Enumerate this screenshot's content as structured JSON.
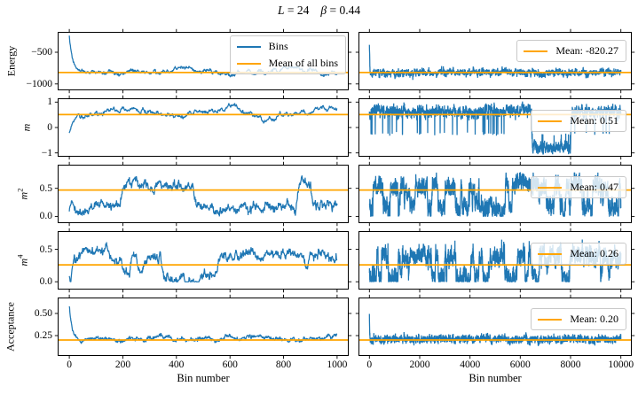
{
  "figure": {
    "title": {
      "var1": "L",
      "eq1": " = ",
      "val1": "24",
      "var2": "β",
      "eq2": " = ",
      "val2": "0.44"
    },
    "colors": {
      "series": "#1f77b4",
      "mean": "#ffa500",
      "axes": "#000000",
      "legend_border": "#c9c9c9"
    }
  },
  "chart_data": {
    "type": "line",
    "suptitle": "L = 24  β = 0.44",
    "xlabel": "Bin number",
    "legend_left": [
      "Bins",
      "Mean of all bins"
    ],
    "legend_position": "upper right",
    "grid": false,
    "columns": [
      {
        "name": "left",
        "xlim": [
          0,
          1000
        ],
        "xticks": [
          0,
          200,
          400,
          600,
          800,
          1000
        ],
        "xtick_labels": [
          "0",
          "200",
          "400",
          "600",
          "800",
          "1000"
        ]
      },
      {
        "name": "right",
        "xlim": [
          0,
          10000
        ],
        "xticks": [
          0,
          2000,
          4000,
          6000,
          8000,
          10000
        ],
        "xtick_labels": [
          "0",
          "2000",
          "4000",
          "6000",
          "8000",
          "10000"
        ]
      }
    ],
    "rows": [
      {
        "id": "energy",
        "ylabel": "Energy",
        "ylabel_sup": "",
        "ylabel_italic": false,
        "ylim": [
          -1100,
          -180
        ],
        "yticks": [
          {
            "v": -500,
            "label": "−500"
          },
          {
            "v": -1000,
            "label": "−1000"
          }
        ],
        "mean": -820.27,
        "mean_label": "Mean: -820.27",
        "series_left": {
          "n": 1000,
          "seed": 11,
          "start": -200,
          "base": -808,
          "tau": 12,
          "walkSigma": 18,
          "reversion": 0.06,
          "noiseSigma": 15,
          "slowAmp": 38,
          "slowPeriods": 2.6,
          "slowPhase": 1.0,
          "clamp": [
            -1055,
            -196
          ]
        },
        "series_right": {
          "n": 2400,
          "seed": 12,
          "start": -196,
          "base": -818,
          "tau": 4,
          "walkSigma": 30,
          "reversion": 0.22,
          "noiseSigma": 40,
          "clamp": [
            -1050,
            -196
          ]
        }
      },
      {
        "id": "m",
        "ylabel": "m",
        "ylabel_sup": "",
        "ylabel_italic": true,
        "ylim": [
          -1.15,
          1.15
        ],
        "yticks": [
          {
            "v": 1,
            "label": "1"
          },
          {
            "v": 0,
            "label": "0"
          },
          {
            "v": -1,
            "label": "−1"
          }
        ],
        "mean": 0.51,
        "mean_label": "Mean: 0.51",
        "series_left": {
          "n": 1000,
          "seed": 21,
          "start": -0.25,
          "base": 0.62,
          "tau": 16,
          "walkSigma": 0.06,
          "reversion": 0.05,
          "noiseSigma": 0.025,
          "slowAmp": 0.16,
          "slowPeriods": 2.8,
          "slowPhase": 4.0,
          "clamp": [
            -0.92,
            0.96
          ]
        },
        "series_right": {
          "n": 2400,
          "seed": 22,
          "start": 0.7,
          "base": 0.63,
          "tau": 4,
          "walkSigma": 0.12,
          "reversion": 0.18,
          "noiseSigma": 0.14,
          "spikeProb": 0.02,
          "spikeLevel": -0.25,
          "excursions": [
            {
              "from": 0.645,
              "to": 0.8,
              "level": -0.78
            }
          ],
          "clamp": [
            -1.05,
            1.02
          ]
        }
      },
      {
        "id": "m2",
        "ylabel": "m",
        "ylabel_sup": "2",
        "ylabel_italic": true,
        "ylim": [
          -0.12,
          0.92
        ],
        "yticks": [
          {
            "v": 0.5,
            "label": "0.5"
          },
          {
            "v": 0.0,
            "label": "0.0"
          }
        ],
        "mean": 0.47,
        "mean_label": "Mean: 0.47",
        "series_left": {
          "n": 1000,
          "seed": 31,
          "start": 0.1,
          "tau": 9,
          "bistable": {
            "low": 0.17,
            "high": 0.58,
            "flip": 0.006
          },
          "walkSigma": 0.05,
          "reversion": 0.09,
          "noiseSigma": 0.04,
          "clamp": [
            0.0,
            0.8
          ]
        },
        "series_right": {
          "n": 2400,
          "seed": 32,
          "start": 0.3,
          "tau": 3,
          "bistable": {
            "low": 0.15,
            "high": 0.55,
            "flip": 0.02
          },
          "walkSigma": 0.09,
          "reversion": 0.2,
          "noiseSigma": 0.12,
          "clamp": [
            0.0,
            0.78
          ]
        }
      },
      {
        "id": "m4",
        "ylabel": "m",
        "ylabel_sup": "4",
        "ylabel_italic": true,
        "ylim": [
          -0.12,
          0.78
        ],
        "yticks": [
          {
            "v": 0.5,
            "label": "0.5"
          },
          {
            "v": 0.0,
            "label": "0.0"
          }
        ],
        "mean": 0.26,
        "mean_label": "Mean: 0.26",
        "series_left": {
          "n": 1000,
          "seed": 41,
          "start": 0.05,
          "tau": 9,
          "bistable": {
            "low": 0.07,
            "high": 0.42,
            "flip": 0.006
          },
          "walkSigma": 0.045,
          "reversion": 0.09,
          "noiseSigma": 0.035,
          "clamp": [
            0.0,
            0.7
          ]
        },
        "series_right": {
          "n": 2400,
          "seed": 42,
          "start": 0.2,
          "tau": 3,
          "bistable": {
            "low": 0.06,
            "high": 0.4,
            "flip": 0.02
          },
          "walkSigma": 0.08,
          "reversion": 0.2,
          "noiseSigma": 0.11,
          "clamp": [
            0.0,
            0.68
          ]
        }
      },
      {
        "id": "acceptance",
        "ylabel": "Acceptance",
        "ylabel_sup": "",
        "ylabel_italic": false,
        "ylim": [
          0.02,
          0.68
        ],
        "yticks": [
          {
            "v": 0.5,
            "label": "0.50"
          },
          {
            "v": 0.25,
            "label": "0.25"
          }
        ],
        "mean": 0.2,
        "mean_label": "Mean: 0.20",
        "series_left": {
          "n": 1000,
          "seed": 51,
          "start": 0.645,
          "base": 0.215,
          "tau": 10,
          "walkSigma": 0.013,
          "reversion": 0.06,
          "noiseSigma": 0.014,
          "slowAmp": 0.012,
          "slowPeriods": 3,
          "slowPhase": 1.5,
          "clamp": [
            0.13,
            0.65
          ]
        },
        "series_right": {
          "n": 2400,
          "seed": 52,
          "start": 0.645,
          "base": 0.21,
          "tau": 3,
          "walkSigma": 0.022,
          "reversion": 0.2,
          "noiseSigma": 0.035,
          "clamp": [
            0.12,
            0.65
          ]
        }
      }
    ]
  }
}
